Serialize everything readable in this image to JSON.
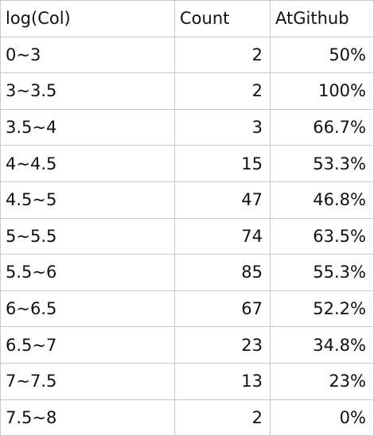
{
  "table": {
    "headers": [
      "log(Col)",
      "Count",
      "AtGithub"
    ],
    "rows": [
      {
        "range": "0~3",
        "count": "2",
        "at_github": "50%"
      },
      {
        "range": "3~3.5",
        "count": "2",
        "at_github": "100%"
      },
      {
        "range": "3.5~4",
        "count": "3",
        "at_github": "66.7%"
      },
      {
        "range": "4~4.5",
        "count": "15",
        "at_github": "53.3%"
      },
      {
        "range": "4.5~5",
        "count": "47",
        "at_github": "46.8%"
      },
      {
        "range": "5~5.5",
        "count": "74",
        "at_github": "63.5%"
      },
      {
        "range": "5.5~6",
        "count": "85",
        "at_github": "55.3%"
      },
      {
        "range": "6~6.5",
        "count": "67",
        "at_github": "52.2%"
      },
      {
        "range": "6.5~7",
        "count": "23",
        "at_github": "34.8%"
      },
      {
        "range": "7~7.5",
        "count": "13",
        "at_github": "23%"
      },
      {
        "range": "7.5~8",
        "count": "2",
        "at_github": "0%"
      }
    ]
  }
}
